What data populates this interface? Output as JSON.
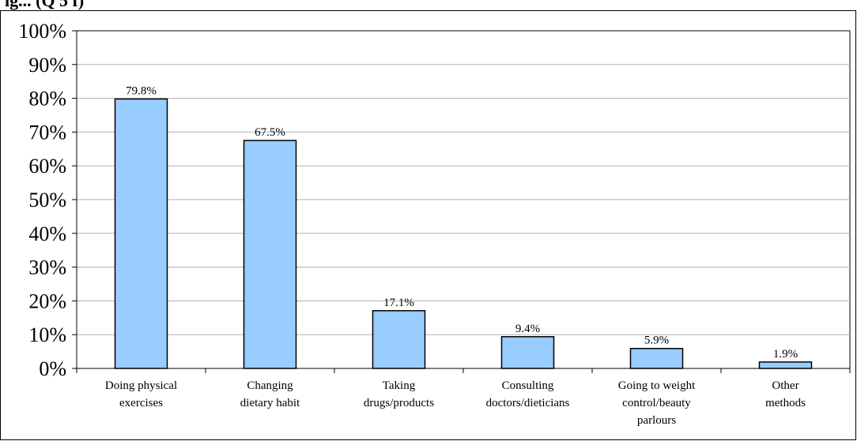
{
  "header": {
    "caption_fragment": "ig... (Q 5 f)"
  },
  "chart_data": {
    "type": "bar",
    "categories": [
      [
        "Doing physical",
        "exercises"
      ],
      [
        "Changing",
        "dietary habit"
      ],
      [
        "Taking",
        "drugs/products"
      ],
      [
        "Consulting",
        "doctors/dieticians"
      ],
      [
        "Going to weight",
        "control/beauty",
        "parlours"
      ],
      [
        "Other",
        "methods"
      ]
    ],
    "values": [
      79.8,
      67.5,
      17.1,
      9.4,
      5.9,
      1.9
    ],
    "data_labels": [
      "79.8%",
      "67.5%",
      "17.1%",
      "9.4%",
      "5.9%",
      "1.9%"
    ],
    "yticks": [
      "0%",
      "10%",
      "20%",
      "30%",
      "40%",
      "50%",
      "60%",
      "70%",
      "80%",
      "90%",
      "100%"
    ],
    "ylim": [
      0,
      100
    ],
    "grid": true,
    "legend": "none",
    "colors": {
      "bar_fill": "#99ccff",
      "bar_stroke": "#000000",
      "grid": "#b0b0b0",
      "axis": "#000000"
    }
  }
}
